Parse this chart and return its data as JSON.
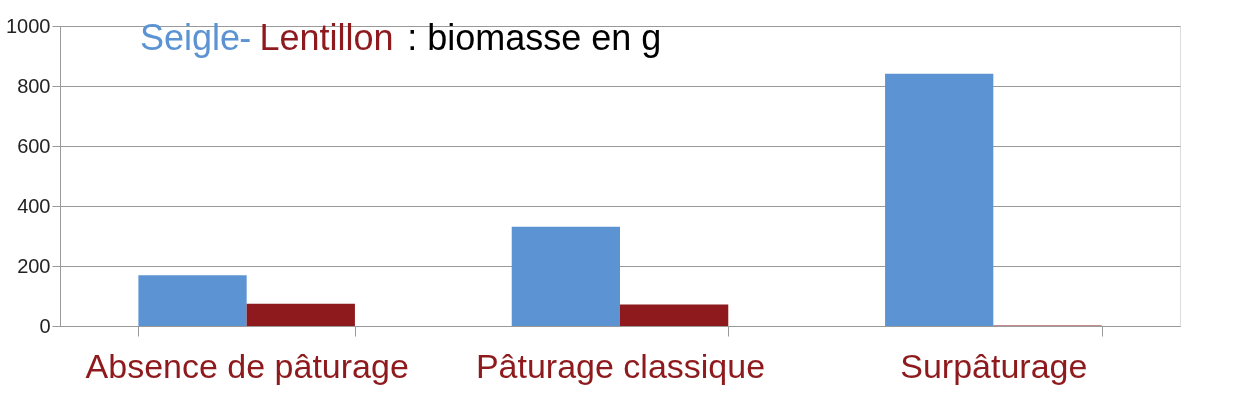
{
  "chart_data": {
    "type": "bar",
    "title": ": biomasse en g",
    "annotations": [
      "-"
    ],
    "categories": [
      "Absence de pâturage",
      "Pâturage classique",
      "Surpâturage"
    ],
    "series": [
      {
        "name": "Seigle",
        "color": "#5b93d3",
        "values": [
          169,
          331,
          841
        ]
      },
      {
        "name": "Lentillon",
        "color": "#8e1a1d",
        "values": [
          74,
          72,
          2
        ]
      }
    ],
    "ylim": [
      0,
      1000
    ],
    "yticks": [
      0,
      200,
      400,
      600,
      800,
      1000
    ],
    "grid": "y"
  }
}
